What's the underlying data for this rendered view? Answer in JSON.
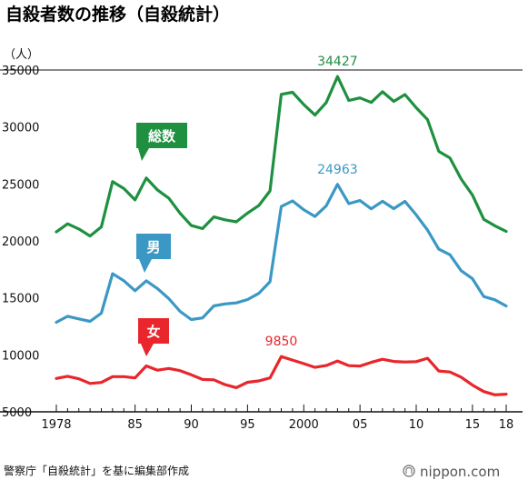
{
  "chart_data": {
    "type": "line",
    "title": "自殺者数の推移（自殺統計）",
    "ylabel": "（人）",
    "ylim": [
      5000,
      35000
    ],
    "yticks": [
      5000,
      10000,
      15000,
      20000,
      25000,
      30000,
      35000
    ],
    "x": [
      1978,
      1979,
      1980,
      1981,
      1982,
      1983,
      1984,
      1985,
      1986,
      1987,
      1988,
      1989,
      1990,
      1991,
      1992,
      1993,
      1994,
      1995,
      1996,
      1997,
      1998,
      1999,
      2000,
      2001,
      2002,
      2003,
      2004,
      2005,
      2006,
      2007,
      2008,
      2009,
      2010,
      2011,
      2012,
      2013,
      2014,
      2015,
      2016,
      2017,
      2018
    ],
    "xticks": [
      {
        "value": 1978,
        "label": "1978"
      },
      {
        "value": 1985,
        "label": "85"
      },
      {
        "value": 1990,
        "label": "90"
      },
      {
        "value": 1995,
        "label": "95"
      },
      {
        "value": 2000,
        "label": "2000"
      },
      {
        "value": 2005,
        "label": "05"
      },
      {
        "value": 2010,
        "label": "10"
      },
      {
        "value": 2015,
        "label": "15"
      },
      {
        "value": 2018,
        "label": "18"
      }
    ],
    "grid": false,
    "series": [
      {
        "name": "総数",
        "color": "#1e9040",
        "values": [
          20788,
          21503,
          21048,
          20434,
          21228,
          25202,
          24596,
          23599,
          25524,
          24460,
          23742,
          22436,
          21346,
          21084,
          22104,
          21851,
          21679,
          22445,
          23104,
          24391,
          32863,
          33048,
          31957,
          31042,
          32143,
          34427,
          32325,
          32552,
          32155,
          33093,
          32249,
          32845,
          31690,
          30651,
          27858,
          27283,
          25427,
          24025,
          21897,
          21321,
          20840
        ]
      },
      {
        "name": "男",
        "color": "#3b98c4",
        "values": [
          12859,
          13386,
          13155,
          12942,
          13654,
          17116,
          16508,
          15624,
          16497,
          15802,
          14934,
          13818,
          13102,
          13242,
          14296,
          14468,
          14560,
          14853,
          15393,
          16416,
          23013,
          23512,
          22727,
          22144,
          23080,
          24963,
          23272,
          23540,
          22813,
          23478,
          22831,
          23472,
          22283,
          20955,
          19273,
          18787,
          17386,
          16681,
          15121,
          14826,
          14290
        ]
      },
      {
        "name": "女",
        "color": "#e8262b",
        "values": [
          7929,
          8117,
          7893,
          7492,
          7574,
          8086,
          8088,
          7975,
          9027,
          8658,
          8808,
          8618,
          8244,
          7842,
          7808,
          7383,
          7119,
          7592,
          7711,
          7975,
          9850,
          9536,
          9230,
          8898,
          9063,
          9464,
          9053,
          9012,
          9342,
          9615,
          9418,
          9373,
          9407,
          9696,
          8585,
          8496,
          8041,
          7344,
          6776,
          6495,
          6550
        ]
      }
    ],
    "annotations": [
      {
        "text": "34427",
        "series": 0,
        "x": 2003
      },
      {
        "text": "24963",
        "series": 1,
        "x": 2003
      },
      {
        "text": "9850",
        "series": 2,
        "x": 1998
      }
    ]
  },
  "labels": {
    "total": "総数",
    "male": "男",
    "female": "女"
  },
  "source": "警察庁「自殺統計」を基に編集部作成",
  "brand": "nippon.com"
}
